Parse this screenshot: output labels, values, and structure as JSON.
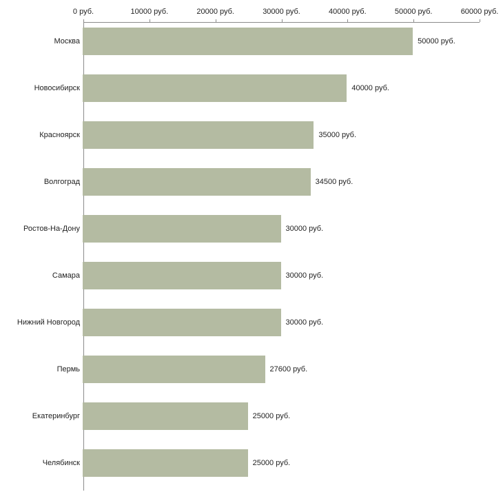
{
  "chart_data": {
    "type": "bar",
    "orientation": "horizontal",
    "title": "",
    "xlabel": "",
    "ylabel": "",
    "categories": [
      "Москва",
      "Новосибирск",
      "Красноярск",
      "Волгоград",
      "Ростов-На-Дону",
      "Самара",
      "Нижний Новгород",
      "Пермь",
      "Екатеринбург",
      "Челябинск"
    ],
    "values": [
      50000,
      40000,
      35000,
      34500,
      30000,
      30000,
      30000,
      27600,
      25000,
      25000
    ],
    "value_labels": [
      "50000 руб.",
      "40000 руб.",
      "35000 руб.",
      "34500 руб.",
      "30000 руб.",
      "30000 руб.",
      "30000 руб.",
      "27600 руб.",
      "25000 руб.",
      "25000 руб."
    ],
    "xlim": [
      0,
      60000
    ],
    "x_ticks": [
      0,
      10000,
      20000,
      30000,
      40000,
      50000,
      60000
    ],
    "x_tick_labels": [
      "0 руб.",
      "10000 руб.",
      "20000 руб.",
      "30000 руб.",
      "40000 руб.",
      "50000 руб.",
      "60000 руб."
    ],
    "grid": false,
    "legend": false,
    "colors": {
      "bar_fill": "#b4bba2",
      "axis_line": "#8a8a8a",
      "text": "#222222",
      "background": "#ffffff"
    }
  }
}
